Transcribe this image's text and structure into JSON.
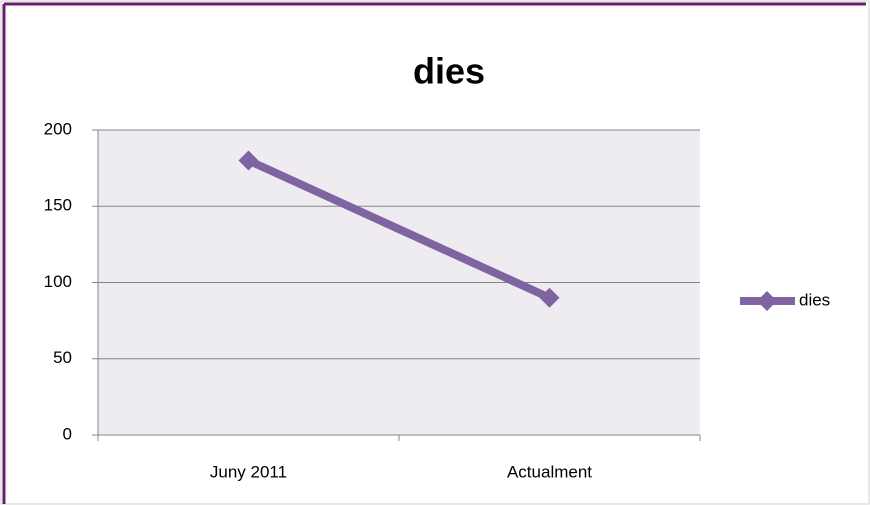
{
  "chart_data": {
    "type": "line",
    "title": "dies",
    "categories": [
      "Juny 2011",
      "Actualment"
    ],
    "series": [
      {
        "name": "dies",
        "color": "#8064a2",
        "values": [
          180,
          90
        ]
      }
    ],
    "ylim": [
      0,
      200
    ],
    "yticks": [
      0,
      50,
      100,
      150,
      200
    ],
    "grid": true,
    "legend": "right"
  }
}
